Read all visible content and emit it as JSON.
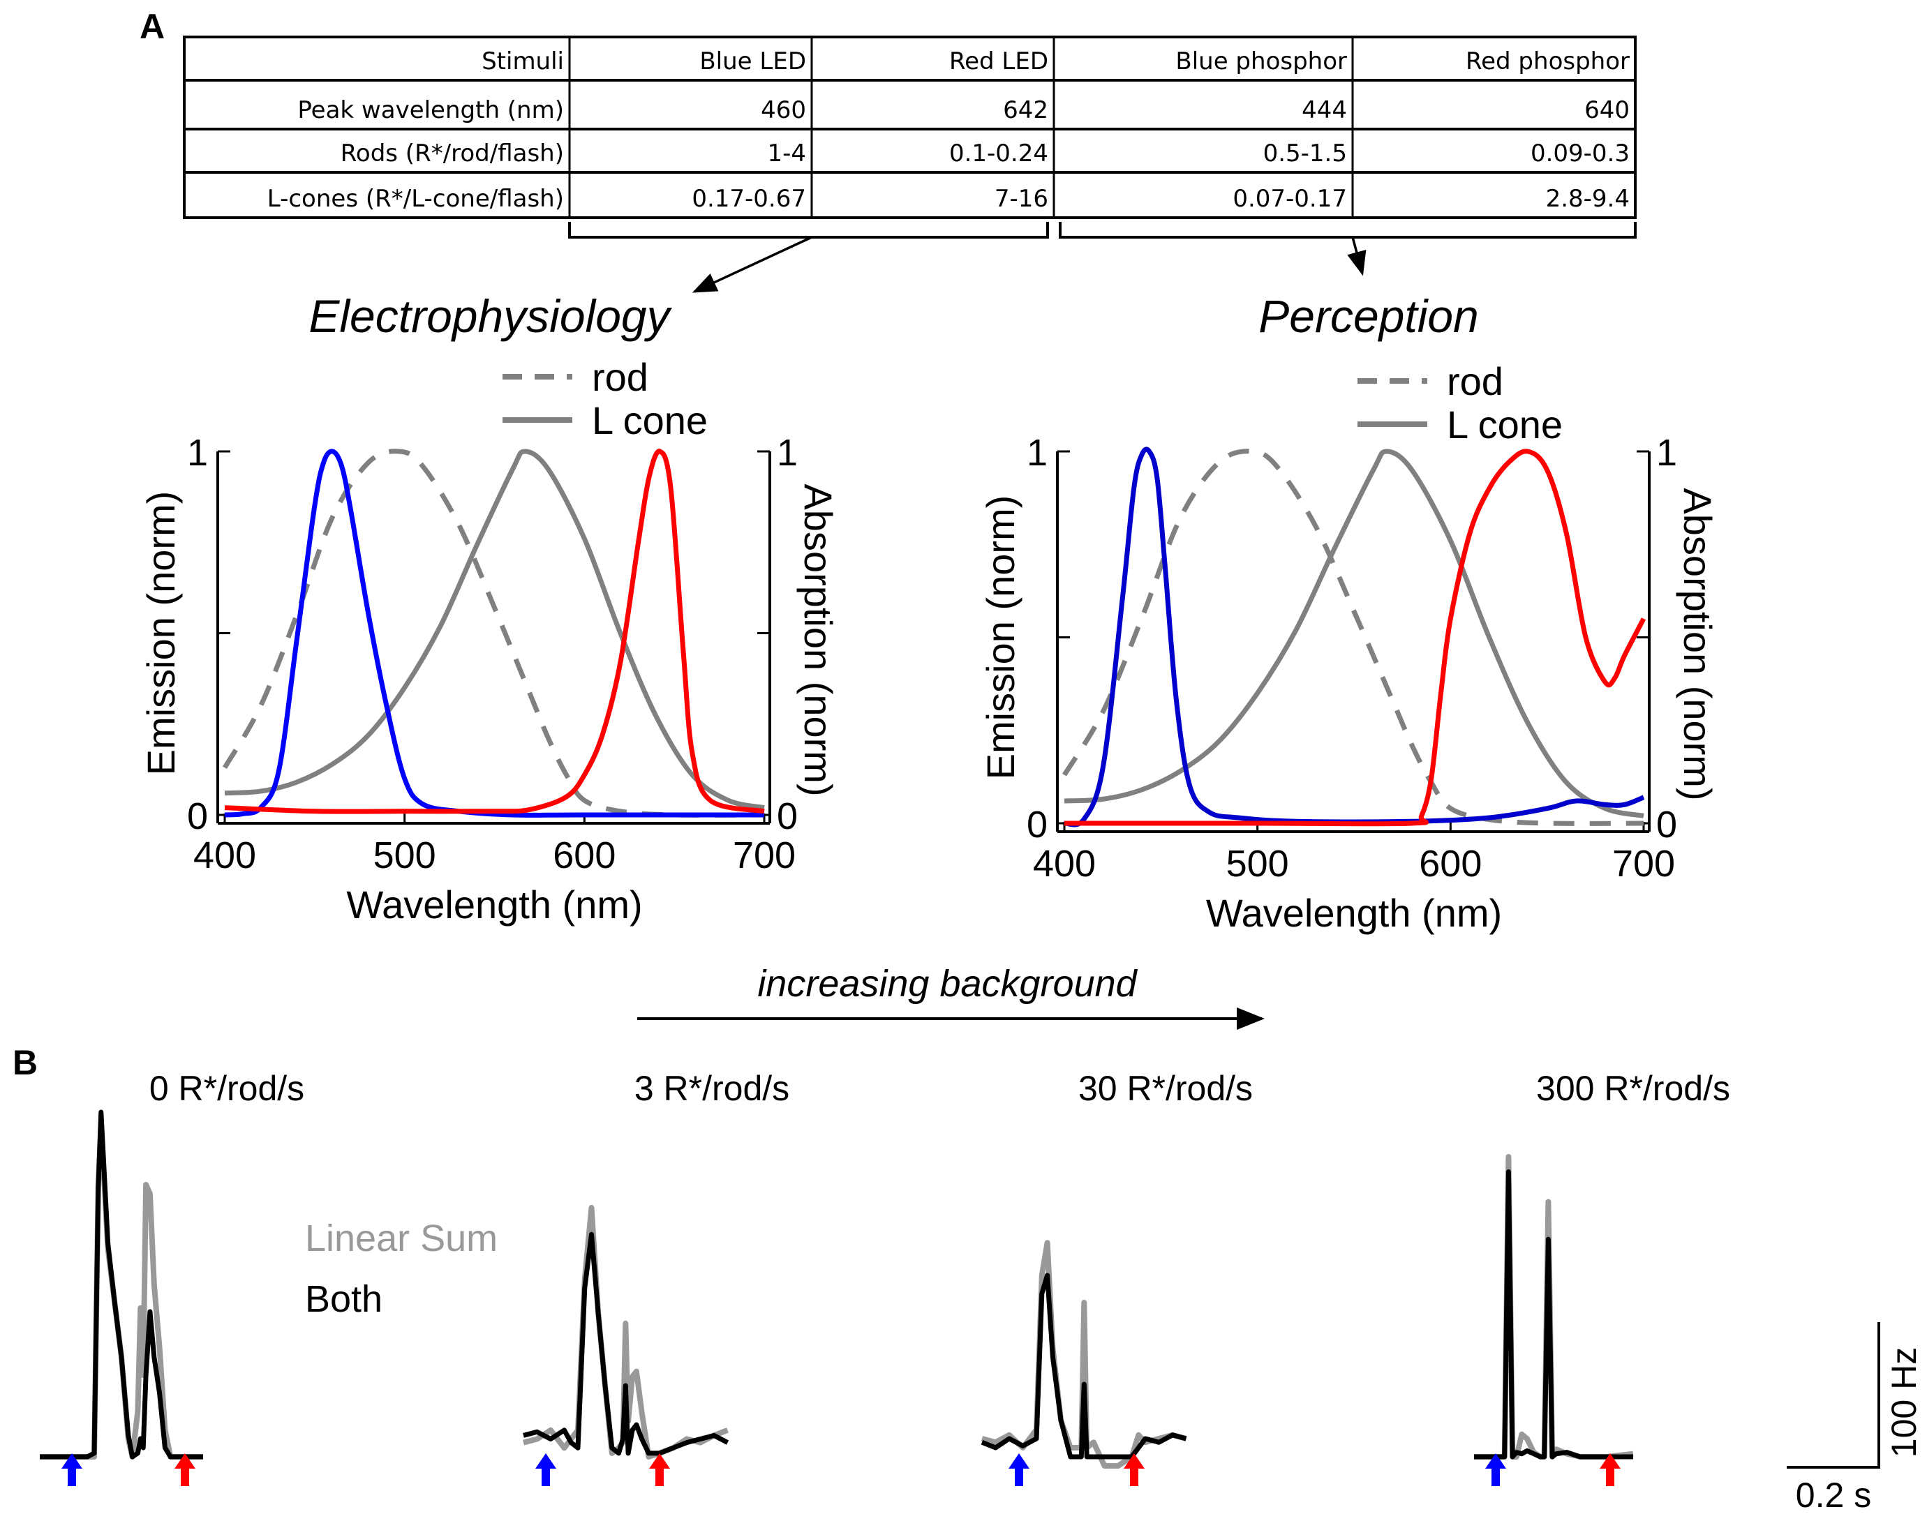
{
  "panel_a": {
    "letter": "A",
    "table": {
      "header": [
        "Stimuli",
        "Blue LED",
        "Red LED",
        "Blue phosphor",
        "Red phosphor"
      ],
      "rows": [
        [
          "Peak wavelength (nm)",
          "460",
          "642",
          "444",
          "640"
        ],
        [
          "Rods (R*/rod/flash)",
          "1-4",
          "0.1-0.24",
          "0.5-1.5",
          "0.09-0.3"
        ],
        [
          "L-cones (R*/L-cone/flash)",
          "0.17-0.67",
          "7-16",
          "0.07-0.17",
          "2.8-9.4"
        ]
      ]
    },
    "left_title": "Electrophysiology",
    "right_title": "Perception"
  },
  "colors": {
    "blue_led": "#0000ff",
    "blue_phosphor": "#0000cc",
    "red": "#ff0000",
    "rod_cone": "#808080",
    "linear_sum": "#999999",
    "both": "#000000"
  },
  "panel_b": {
    "letter": "B",
    "arrow_label": "increasing background",
    "legend": {
      "linear_sum": "Linear Sum",
      "both": "Both"
    },
    "scale_bar": {
      "y_label": "100 Hz",
      "x_label": "0.2 s"
    }
  },
  "chart_data": [
    {
      "type": "line",
      "title": "Electrophysiology",
      "xlabel": "Wavelength (nm)",
      "ylabel": "Emission (norm)",
      "ylabel_right": "Absorption (norm)",
      "xlim": [
        400,
        700
      ],
      "ylim": [
        0,
        1
      ],
      "xticks": [
        "400",
        "500",
        "600",
        "700"
      ],
      "yticks_left": [
        "0",
        "1"
      ],
      "yticks_right": [
        "0",
        "1"
      ],
      "legend": [
        {
          "name": "rod",
          "style": "dashed"
        },
        {
          "name": "L cone",
          "style": "solid"
        }
      ],
      "legend_position": "top-right",
      "series": [
        {
          "name": "rod",
          "color": "#808080",
          "dashed": true,
          "peak_nm": 497,
          "kind": "absorption",
          "x": [
            400,
            420,
            440,
            460,
            480,
            497,
            510,
            530,
            550,
            570,
            580,
            590,
            600,
            620,
            650,
            700
          ],
          "y": [
            0.13,
            0.3,
            0.55,
            0.82,
            0.97,
            1.0,
            0.96,
            0.8,
            0.57,
            0.33,
            0.21,
            0.11,
            0.04,
            0.01,
            0.0,
            0.0
          ]
        },
        {
          "name": "L cone",
          "color": "#808080",
          "dashed": false,
          "peak_nm": 567,
          "kind": "absorption",
          "x": [
            400,
            420,
            440,
            460,
            480,
            500,
            520,
            540,
            560,
            567,
            580,
            600,
            620,
            640,
            660,
            680,
            700
          ],
          "y": [
            0.06,
            0.065,
            0.09,
            0.14,
            0.22,
            0.35,
            0.52,
            0.74,
            0.95,
            1.0,
            0.95,
            0.76,
            0.5,
            0.27,
            0.11,
            0.04,
            0.02
          ]
        },
        {
          "name": "Blue LED",
          "color": "#0000ff",
          "dashed": false,
          "peak_nm": 460,
          "kind": "emission",
          "x": [
            400,
            410,
            420,
            430,
            440,
            450,
            455,
            460,
            465,
            470,
            480,
            490,
            500,
            510,
            530,
            560,
            600,
            700
          ],
          "y": [
            0.0,
            0.003,
            0.02,
            0.12,
            0.48,
            0.85,
            0.97,
            1.0,
            0.96,
            0.84,
            0.55,
            0.3,
            0.1,
            0.03,
            0.01,
            0.0,
            0.0,
            0.0
          ]
        },
        {
          "name": "Red LED",
          "color": "#ff0000",
          "dashed": false,
          "peak_nm": 642,
          "kind": "emission",
          "x": [
            400,
            450,
            500,
            550,
            570,
            590,
            600,
            610,
            620,
            630,
            636,
            642,
            648,
            655,
            660,
            670,
            700
          ],
          "y": [
            0.02,
            0.01,
            0.01,
            0.01,
            0.015,
            0.05,
            0.11,
            0.22,
            0.42,
            0.75,
            0.93,
            1.0,
            0.9,
            0.45,
            0.17,
            0.04,
            0.01
          ]
        }
      ]
    },
    {
      "type": "line",
      "title": "Perception",
      "xlabel": "Wavelength (nm)",
      "ylabel": "Emission (norm)",
      "ylabel_right": "Absorption (norm)",
      "xlim": [
        400,
        700
      ],
      "ylim": [
        0,
        1
      ],
      "xticks": [
        "400",
        "500",
        "600",
        "700"
      ],
      "yticks_left": [
        "0",
        "1"
      ],
      "yticks_right": [
        "0",
        "1"
      ],
      "legend": [
        {
          "name": "rod",
          "style": "dashed"
        },
        {
          "name": "L cone",
          "style": "solid"
        }
      ],
      "legend_position": "top-right",
      "series": [
        {
          "name": "rod",
          "color": "#808080",
          "dashed": true,
          "peak_nm": 497,
          "kind": "absorption",
          "x": [
            400,
            420,
            440,
            460,
            480,
            497,
            510,
            530,
            550,
            570,
            580,
            590,
            600,
            620,
            650,
            700
          ],
          "y": [
            0.13,
            0.3,
            0.55,
            0.82,
            0.97,
            1.0,
            0.96,
            0.8,
            0.57,
            0.33,
            0.21,
            0.11,
            0.04,
            0.01,
            0.0,
            0.0
          ]
        },
        {
          "name": "L cone",
          "color": "#808080",
          "dashed": false,
          "peak_nm": 567,
          "kind": "absorption",
          "x": [
            400,
            420,
            440,
            460,
            480,
            500,
            520,
            540,
            560,
            567,
            580,
            600,
            620,
            640,
            660,
            680,
            700
          ],
          "y": [
            0.06,
            0.065,
            0.09,
            0.14,
            0.22,
            0.35,
            0.52,
            0.74,
            0.95,
            1.0,
            0.95,
            0.76,
            0.5,
            0.27,
            0.11,
            0.04,
            0.02
          ]
        },
        {
          "name": "Blue phosphor",
          "color": "#0000cc",
          "dashed": false,
          "peak_nm": 444,
          "kind": "emission",
          "x": [
            400,
            410,
            420,
            430,
            436,
            440,
            444,
            448,
            452,
            458,
            465,
            475,
            490,
            520,
            580,
            620,
            650,
            665,
            680,
            690,
            700
          ],
          "y": [
            0.0,
            0.01,
            0.15,
            0.6,
            0.9,
            0.99,
            1.0,
            0.93,
            0.7,
            0.33,
            0.1,
            0.03,
            0.015,
            0.005,
            0.005,
            0.015,
            0.04,
            0.06,
            0.05,
            0.05,
            0.07
          ]
        },
        {
          "name": "Red phosphor",
          "color": "#ff0000",
          "dashed": false,
          "peak_nm": 640,
          "kind": "emission",
          "x": [
            400,
            500,
            580,
            585,
            590,
            595,
            600,
            610,
            620,
            630,
            640,
            650,
            660,
            670,
            680,
            685,
            690,
            700
          ],
          "y": [
            0.0,
            0.0,
            0.0,
            0.02,
            0.12,
            0.35,
            0.55,
            0.78,
            0.9,
            0.97,
            1.0,
            0.95,
            0.78,
            0.5,
            0.38,
            0.39,
            0.45,
            0.55
          ]
        }
      ]
    },
    {
      "type": "line",
      "title": "0 R*/rod/s",
      "units": {
        "y": "Hz",
        "x": "s"
      },
      "stimuli": [
        {
          "color": "blue",
          "t": 0.0
        },
        {
          "color": "red",
          "t": 0.3
        }
      ],
      "series": [
        {
          "name": "Linear Sum",
          "color": "#999999",
          "t": [
            -0.4,
            -0.05,
            0.0,
            0.03,
            0.05,
            0.1,
            0.15,
            0.2,
            0.25,
            0.28,
            0.32,
            0.34,
            0.36,
            0.38,
            0.41,
            0.44,
            0.48,
            0.52,
            0.56,
            0.8
          ],
          "y": [
            0,
            0,
            0,
            150,
            185,
            115,
            85,
            55,
            10,
            0,
            25,
            82,
            45,
            150,
            145,
            95,
            60,
            15,
            0,
            0
          ]
        },
        {
          "name": "Both",
          "color": "#000000",
          "t": [
            -0.4,
            -0.05,
            0.0,
            0.03,
            0.05,
            0.1,
            0.15,
            0.2,
            0.25,
            0.28,
            0.32,
            0.34,
            0.36,
            0.38,
            0.41,
            0.44,
            0.48,
            0.52,
            0.56,
            0.8
          ],
          "y": [
            0,
            0,
            2,
            148,
            190,
            118,
            85,
            55,
            12,
            0,
            2,
            10,
            5,
            45,
            80,
            55,
            35,
            5,
            0,
            0
          ]
        }
      ]
    },
    {
      "type": "line",
      "title": "3 R*/rod/s",
      "units": {
        "y": "Hz",
        "x": "s"
      },
      "stimuli": [
        {
          "color": "blue",
          "t": 0.0
        },
        {
          "color": "red",
          "t": 0.3
        }
      ],
      "series": [
        {
          "name": "Linear Sum",
          "color": "#999999",
          "t": [
            -0.4,
            -0.3,
            -0.2,
            -0.1,
            -0.05,
            0.0,
            0.05,
            0.1,
            0.15,
            0.2,
            0.25,
            0.3,
            0.33,
            0.35,
            0.37,
            0.4,
            0.43,
            0.47,
            0.52,
            0.6,
            0.7,
            0.8,
            0.9,
            1.0,
            1.1
          ],
          "y": [
            8,
            10,
            15,
            5,
            10,
            15,
            100,
            140,
            80,
            40,
            2,
            5,
            8,
            75,
            20,
            45,
            48,
            25,
            0,
            2,
            5,
            10,
            8,
            12,
            15
          ]
        },
        {
          "name": "Both",
          "color": "#000000",
          "t": [
            -0.4,
            -0.3,
            -0.2,
            -0.1,
            -0.05,
            0.0,
            0.05,
            0.1,
            0.15,
            0.2,
            0.25,
            0.3,
            0.33,
            0.35,
            0.37,
            0.4,
            0.43,
            0.47,
            0.52,
            0.6,
            0.7,
            0.8,
            0.9,
            1.0,
            1.1
          ],
          "y": [
            12,
            14,
            10,
            15,
            8,
            5,
            95,
            125,
            80,
            40,
            5,
            2,
            10,
            40,
            2,
            15,
            18,
            10,
            2,
            2,
            5,
            8,
            10,
            12,
            8
          ]
        }
      ]
    },
    {
      "type": "line",
      "title": "30 R*/rod/s",
      "units": {
        "y": "Hz",
        "x": "s"
      },
      "stimuli": [
        {
          "color": "blue",
          "t": 0.0
        },
        {
          "color": "red",
          "t": 0.3
        }
      ],
      "series": [
        {
          "name": "Linear Sum",
          "color": "#999999",
          "t": [
            -0.4,
            -0.3,
            -0.2,
            -0.1,
            -0.05,
            0.0,
            0.04,
            0.08,
            0.12,
            0.18,
            0.25,
            0.3,
            0.33,
            0.35,
            0.37,
            0.42,
            0.5,
            0.6,
            0.7,
            0.75,
            0.8,
            0.9,
            1.0,
            1.1
          ],
          "y": [
            10,
            8,
            12,
            5,
            10,
            15,
            100,
            118,
            60,
            20,
            5,
            5,
            5,
            85,
            5,
            8,
            -5,
            -5,
            0,
            12,
            8,
            10,
            12,
            10
          ]
        },
        {
          "name": "Both",
          "color": "#000000",
          "t": [
            -0.4,
            -0.3,
            -0.2,
            -0.1,
            -0.05,
            0.0,
            0.04,
            0.08,
            0.12,
            0.18,
            0.25,
            0.3,
            0.33,
            0.35,
            0.37,
            0.42,
            0.5,
            0.6,
            0.7,
            0.75,
            0.8,
            0.9,
            1.0,
            1.1
          ],
          "y": [
            8,
            5,
            10,
            6,
            8,
            10,
            90,
            100,
            55,
            20,
            0,
            0,
            0,
            40,
            0,
            0,
            0,
            0,
            0,
            5,
            10,
            8,
            12,
            10
          ]
        }
      ]
    },
    {
      "type": "line",
      "title": "300 R*/rod/s",
      "units": {
        "y": "Hz",
        "x": "s"
      },
      "stimuli": [
        {
          "color": "blue",
          "t": 0.0
        },
        {
          "color": "red",
          "t": 0.3
        }
      ],
      "scale_bar": {
        "y": "100 Hz",
        "x": "0.2 s"
      },
      "series": [
        {
          "name": "Linear Sum",
          "color": "#999999",
          "t": [
            -0.2,
            -0.05,
            0.0,
            0.03,
            0.06,
            0.09,
            0.12,
            0.16,
            0.2,
            0.25,
            0.3,
            0.33,
            0.36,
            0.39,
            0.42,
            0.5,
            0.6,
            0.8,
            1.0
          ],
          "y": [
            0,
            0,
            0,
            0,
            200,
            0,
            0,
            15,
            12,
            3,
            0,
            0,
            170,
            0,
            5,
            2,
            0,
            0,
            2
          ]
        },
        {
          "name": "Both",
          "color": "#000000",
          "t": [
            -0.2,
            -0.05,
            0.0,
            0.03,
            0.06,
            0.09,
            0.12,
            0.16,
            0.2,
            0.25,
            0.3,
            0.33,
            0.36,
            0.39,
            0.42,
            0.5,
            0.6,
            0.8,
            1.0
          ],
          "y": [
            0,
            0,
            0,
            0,
            190,
            0,
            3,
            2,
            4,
            2,
            0,
            0,
            145,
            0,
            2,
            3,
            0,
            0,
            0
          ]
        }
      ]
    }
  ]
}
